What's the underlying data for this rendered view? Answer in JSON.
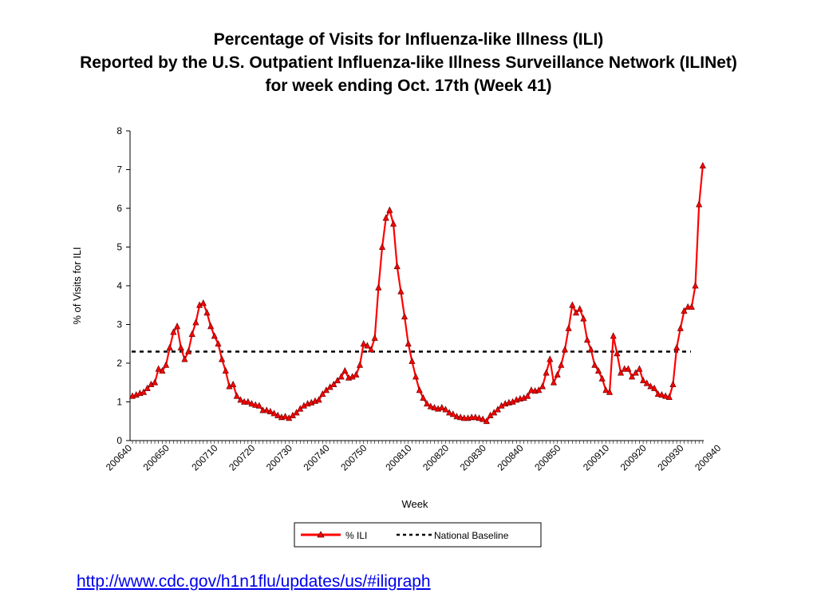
{
  "title": {
    "line1": "Percentage of Visits for Influenza-like Illness (ILI)",
    "line2": "Reported by the U.S. Outpatient Influenza-like Illness Surveillance Network (ILINet)",
    "line3": "for week ending Oct. 17th  (Week 41)"
  },
  "link": {
    "text": "http://www.cdc.gov/h1n1flu/updates/us/#iligraph"
  },
  "colors": {
    "series": "#ff0000",
    "marker_edge": "#6b0000",
    "baseline": "#000000"
  },
  "chart_data": {
    "type": "line",
    "xlabel": "Week",
    "ylabel": "% of Visits for ILI",
    "ylim": [
      0,
      8
    ],
    "yticks": [
      0,
      1,
      2,
      3,
      4,
      5,
      6,
      7,
      8
    ],
    "grid": false,
    "legend_position": "bottom-center",
    "x_tick_labels": [
      "200640",
      "200650",
      "200710",
      "200720",
      "200730",
      "200740",
      "200750",
      "200810",
      "200820",
      "200830",
      "200840",
      "200850",
      "200910",
      "200920",
      "200930",
      "200940"
    ],
    "x_tick_label_index": [
      0,
      10,
      23,
      33,
      43,
      53,
      63,
      75,
      85,
      95,
      105,
      115,
      128,
      138,
      148,
      158
    ],
    "series": [
      {
        "name": "% ILI",
        "style": "line-with-triangle-markers",
        "values": [
          1.15,
          1.18,
          1.22,
          1.25,
          1.35,
          1.45,
          1.5,
          1.85,
          1.8,
          1.95,
          2.4,
          2.8,
          2.95,
          2.4,
          2.1,
          2.3,
          2.75,
          3.05,
          3.5,
          3.55,
          3.3,
          2.95,
          2.7,
          2.5,
          2.1,
          1.8,
          1.4,
          1.45,
          1.15,
          1.05,
          1.0,
          1.0,
          0.95,
          0.92,
          0.9,
          0.78,
          0.78,
          0.75,
          0.7,
          0.65,
          0.6,
          0.62,
          0.58,
          0.65,
          0.72,
          0.82,
          0.9,
          0.95,
          0.98,
          1.02,
          1.05,
          1.2,
          1.3,
          1.38,
          1.45,
          1.55,
          1.65,
          1.8,
          1.62,
          1.65,
          1.7,
          1.95,
          2.5,
          2.45,
          2.35,
          2.65,
          3.95,
          5.0,
          5.75,
          5.95,
          5.6,
          4.5,
          3.85,
          3.2,
          2.5,
          2.05,
          1.65,
          1.3,
          1.1,
          0.95,
          0.88,
          0.85,
          0.82,
          0.85,
          0.8,
          0.72,
          0.68,
          0.62,
          0.6,
          0.58,
          0.58,
          0.6,
          0.6,
          0.58,
          0.55,
          0.5,
          0.65,
          0.72,
          0.8,
          0.9,
          0.95,
          0.98,
          1.0,
          1.05,
          1.08,
          1.1,
          1.15,
          1.3,
          1.28,
          1.3,
          1.4,
          1.75,
          2.1,
          1.5,
          1.7,
          1.95,
          2.35,
          2.9,
          3.5,
          3.3,
          3.4,
          3.15,
          2.6,
          2.35,
          1.95,
          1.8,
          1.6,
          1.3,
          1.25,
          2.7,
          2.25,
          1.75,
          1.85,
          1.85,
          1.65,
          1.75,
          1.85,
          1.55,
          1.48,
          1.4,
          1.35,
          1.2,
          1.18,
          1.15,
          1.12,
          1.45,
          2.4,
          2.9,
          3.35,
          3.45,
          3.45,
          4.0,
          6.1,
          7.1
        ]
      },
      {
        "name": "National Baseline",
        "style": "dashed",
        "value": 2.3
      }
    ]
  }
}
